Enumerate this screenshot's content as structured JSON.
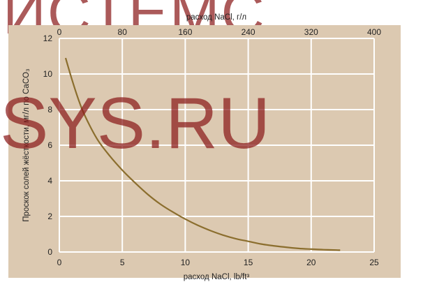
{
  "watermark": {
    "line1": "ИСТЕМС",
    "line2": "SYS.RU",
    "color": "#8b1a1a"
  },
  "chart_data": {
    "type": "line",
    "title": "",
    "xlabel": "расход NaCl, lb/ft³",
    "ylabel": "Проскок солей жёсткости, мг/л по CaCO₃",
    "x2label": "расход NaCl, г/л",
    "xlim": [
      0,
      25
    ],
    "ylim": [
      0,
      12
    ],
    "x2lim": [
      0,
      400
    ],
    "xticks": [
      "0",
      "5",
      "10",
      "15",
      "20",
      "25"
    ],
    "yticks": [
      "0",
      "2",
      "4",
      "6",
      "8",
      "10",
      "12"
    ],
    "x2ticks": [
      "0",
      "80",
      "160",
      "240",
      "320",
      "400"
    ],
    "grid": true,
    "background": "#dcc9b1",
    "line_color": "#8b6e2e",
    "series": [
      {
        "name": "",
        "x": [
          0.5,
          1,
          1.5,
          2,
          3,
          4,
          5,
          6,
          7,
          8,
          9,
          10,
          11,
          12,
          13,
          14,
          15,
          16,
          17,
          18,
          19,
          20,
          21,
          22,
          22.3
        ],
        "y": [
          10.9,
          9.7,
          8.6,
          7.7,
          6.35,
          5.4,
          4.6,
          3.9,
          3.25,
          2.7,
          2.25,
          1.85,
          1.5,
          1.2,
          0.95,
          0.75,
          0.6,
          0.45,
          0.35,
          0.27,
          0.2,
          0.16,
          0.13,
          0.11,
          0.1
        ]
      }
    ]
  }
}
